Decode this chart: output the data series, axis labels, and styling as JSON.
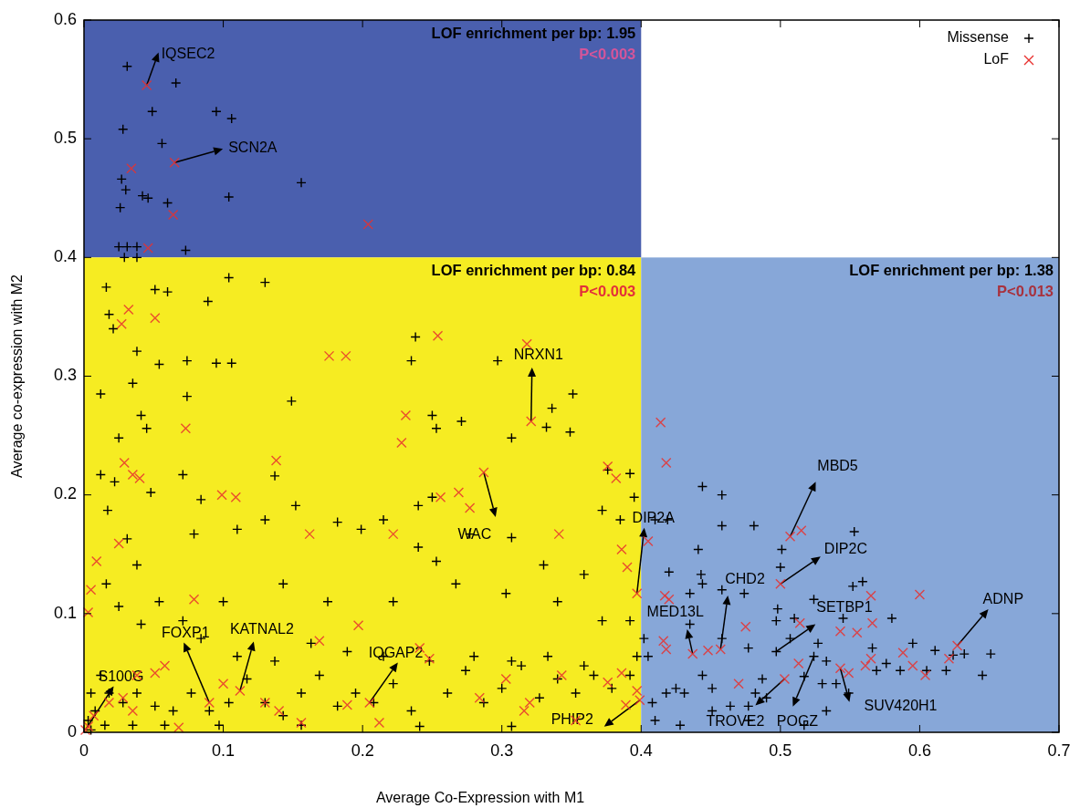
{
  "chart_data": {
    "type": "scatter",
    "xlabel": "Average Co-Expression with M1",
    "ylabel": "Average co-expression with M2",
    "xlim": [
      0,
      0.7
    ],
    "ylim": [
      0,
      0.6
    ],
    "xticks": [
      0,
      0.1,
      0.2,
      0.3,
      0.4,
      0.5,
      0.6,
      0.7
    ],
    "yticks": [
      0,
      0.1,
      0.2,
      0.3,
      0.4,
      0.5,
      0.6
    ],
    "grid": false,
    "legend": "top right",
    "bands": [
      {
        "axis": "y",
        "from": 0.4,
        "to": 0.6,
        "color": "#4a5fae",
        "label": "LOF enrichment per bp: 1.95"
      },
      {
        "axis": "x",
        "from": 0,
        "to": 0.4,
        "color": "#f6ec22",
        "label": "LOF enrichment per bp: 0.84"
      },
      {
        "axis": "x",
        "from": 0.4,
        "to": 0.7,
        "color": "#87a7d8",
        "label": "LOF enrichment per bp: 1.38"
      }
    ],
    "series": [
      {
        "name": "Missense",
        "color": "#000000",
        "marker": "plus",
        "x": [
          0.031,
          0.066,
          0.049,
          0.095,
          0.106,
          0.028,
          0.056,
          0.027,
          0.03,
          0.042,
          0.046,
          0.06,
          0.026,
          0.104,
          0.156,
          0.025,
          0.031,
          0.038,
          0.073,
          0.029,
          0.038,
          0.016,
          0.051,
          0.06,
          0.089,
          0.104,
          0.13,
          0.238,
          0.297,
          0.018,
          0.021,
          0.038,
          0.054,
          0.074,
          0.095,
          0.106,
          0.035,
          0.074,
          0.149,
          0.235,
          0.25,
          0.253,
          0.271,
          0.336,
          0.351,
          0.332,
          0.349,
          0.307,
          0.012,
          0.025,
          0.041,
          0.045,
          0.022,
          0.048,
          0.071,
          0.084,
          0.079,
          0.11,
          0.13,
          0.137,
          0.152,
          0.182,
          0.199,
          0.215,
          0.24,
          0.25,
          0.24,
          0.253,
          0.277,
          0.307,
          0.33,
          0.359,
          0.372,
          0.376,
          0.392,
          0.395,
          0.385,
          0.012,
          0.017,
          0.031,
          0.016,
          0.038,
          0.054,
          0.025,
          0.041,
          0.071,
          0.1,
          0.143,
          0.175,
          0.222,
          0.267,
          0.303,
          0.34,
          0.372,
          0.392,
          0.012,
          0.018,
          0.028,
          0.038,
          0.051,
          0.064,
          0.077,
          0.09,
          0.104,
          0.117,
          0.13,
          0.143,
          0.156,
          0.169,
          0.182,
          0.195,
          0.208,
          0.222,
          0.235,
          0.248,
          0.261,
          0.274,
          0.287,
          0.3,
          0.314,
          0.327,
          0.34,
          0.353,
          0.366,
          0.379,
          0.392,
          0.397,
          0.084,
          0.11,
          0.137,
          0.163,
          0.189,
          0.215,
          0.28,
          0.307,
          0.333,
          0.359,
          0.005,
          0.008,
          0.015,
          0.035,
          0.058,
          0.097,
          0.156,
          0.241,
          0.307,
          0.003,
          0.005,
          0.444,
          0.458,
          0.41,
          0.419,
          0.458,
          0.481,
          0.441,
          0.42,
          0.443,
          0.444,
          0.435,
          0.458,
          0.474,
          0.501,
          0.5,
          0.553,
          0.552,
          0.559,
          0.524,
          0.498,
          0.497,
          0.51,
          0.545,
          0.58,
          0.595,
          0.611,
          0.624,
          0.632,
          0.566,
          0.569,
          0.576,
          0.586,
          0.619,
          0.645,
          0.651,
          0.605,
          0.53,
          0.517,
          0.549,
          0.49,
          0.487,
          0.451,
          0.444,
          0.431,
          0.425,
          0.418,
          0.408,
          0.41,
          0.428,
          0.451,
          0.464,
          0.477,
          0.482,
          0.524,
          0.533,
          0.54,
          0.517,
          0.533,
          0.477,
          0.405,
          0.402,
          0.435,
          0.458,
          0.477,
          0.497,
          0.507,
          0.527
        ],
        "values": [
          0.561,
          0.547,
          0.523,
          0.523,
          0.517,
          0.508,
          0.496,
          0.466,
          0.457,
          0.452,
          0.45,
          0.446,
          0.442,
          0.451,
          0.463,
          0.409,
          0.409,
          0.409,
          0.406,
          0.4,
          0.4,
          0.375,
          0.373,
          0.371,
          0.363,
          0.383,
          0.379,
          0.333,
          0.313,
          0.352,
          0.34,
          0.321,
          0.31,
          0.313,
          0.311,
          0.311,
          0.294,
          0.283,
          0.279,
          0.313,
          0.267,
          0.256,
          0.262,
          0.273,
          0.285,
          0.257,
          0.253,
          0.248,
          0.285,
          0.248,
          0.267,
          0.256,
          0.211,
          0.202,
          0.217,
          0.196,
          0.167,
          0.171,
          0.179,
          0.216,
          0.191,
          0.177,
          0.171,
          0.179,
          0.191,
          0.198,
          0.156,
          0.144,
          0.167,
          0.164,
          0.141,
          0.133,
          0.187,
          0.221,
          0.218,
          0.198,
          0.179,
          0.217,
          0.187,
          0.163,
          0.125,
          0.141,
          0.11,
          0.106,
          0.091,
          0.094,
          0.11,
          0.125,
          0.11,
          0.11,
          0.125,
          0.117,
          0.11,
          0.094,
          0.094,
          0.048,
          0.033,
          0.025,
          0.033,
          0.022,
          0.018,
          0.033,
          0.018,
          0.025,
          0.045,
          0.025,
          0.014,
          0.033,
          0.048,
          0.022,
          0.033,
          0.025,
          0.041,
          0.018,
          0.06,
          0.033,
          0.052,
          0.025,
          0.037,
          0.056,
          0.029,
          0.045,
          0.033,
          0.048,
          0.037,
          0.048,
          0.064,
          0.079,
          0.064,
          0.06,
          0.075,
          0.068,
          0.064,
          0.064,
          0.06,
          0.064,
          0.056,
          0.033,
          0.018,
          0.006,
          0.006,
          0.006,
          0.006,
          0.006,
          0.005,
          0.005,
          0.01,
          0.002,
          0.207,
          0.2,
          0.179,
          0.179,
          0.174,
          0.174,
          0.154,
          0.135,
          0.133,
          0.125,
          0.117,
          0.12,
          0.117,
          0.154,
          0.139,
          0.169,
          0.123,
          0.127,
          0.112,
          0.104,
          0.094,
          0.096,
          0.096,
          0.096,
          0.075,
          0.069,
          0.065,
          0.066,
          0.071,
          0.052,
          0.058,
          0.052,
          0.052,
          0.048,
          0.066,
          0.052,
          0.041,
          0.047,
          0.033,
          0.029,
          0.045,
          0.037,
          0.048,
          0.033,
          0.037,
          0.033,
          0.025,
          0.01,
          0.006,
          0.018,
          0.022,
          0.022,
          0.033,
          0.064,
          0.06,
          0.041,
          0.006,
          0.018,
          0.01,
          0.064,
          0.079,
          0.091,
          0.079,
          0.071,
          0.068,
          0.079,
          0.075
        ]
      },
      {
        "name": "LoF",
        "color": "#e8312f",
        "marker": "cross",
        "x": [
          0.045,
          0.034,
          0.065,
          0.064,
          0.204,
          0.046,
          0.032,
          0.051,
          0.027,
          0.176,
          0.188,
          0.254,
          0.318,
          0.073,
          0.035,
          0.04,
          0.029,
          0.099,
          0.138,
          0.231,
          0.228,
          0.256,
          0.269,
          0.277,
          0.287,
          0.321,
          0.341,
          0.376,
          0.382,
          0.397,
          0.39,
          0.386,
          0.109,
          0.162,
          0.222,
          0.009,
          0.005,
          0.025,
          0.003,
          0.079,
          0.169,
          0.197,
          0.248,
          0.001,
          0.003,
          0.007,
          0.018,
          0.028,
          0.035,
          0.038,
          0.051,
          0.058,
          0.09,
          0.1,
          0.112,
          0.13,
          0.14,
          0.156,
          0.068,
          0.189,
          0.212,
          0.205,
          0.241,
          0.284,
          0.303,
          0.316,
          0.32,
          0.343,
          0.353,
          0.376,
          0.386,
          0.389,
          0.397,
          0.399,
          0.414,
          0.418,
          0.405,
          0.417,
          0.42,
          0.416,
          0.418,
          0.437,
          0.448,
          0.457,
          0.475,
          0.514,
          0.566,
          0.513,
          0.5,
          0.507,
          0.515,
          0.565,
          0.6,
          0.543,
          0.555,
          0.565,
          0.621,
          0.627,
          0.561,
          0.549,
          0.604,
          0.588,
          0.543,
          0.47,
          0.503,
          0.595
        ],
        "values": [
          0.545,
          0.475,
          0.48,
          0.436,
          0.428,
          0.408,
          0.356,
          0.349,
          0.344,
          0.317,
          0.317,
          0.334,
          0.327,
          0.256,
          0.217,
          0.214,
          0.227,
          0.2,
          0.229,
          0.267,
          0.244,
          0.198,
          0.202,
          0.189,
          0.219,
          0.262,
          0.167,
          0.224,
          0.214,
          0.117,
          0.139,
          0.154,
          0.198,
          0.167,
          0.167,
          0.144,
          0.12,
          0.159,
          0.101,
          0.112,
          0.077,
          0.09,
          0.062,
          0.002,
          0.005,
          0.014,
          0.025,
          0.029,
          0.018,
          0.048,
          0.05,
          0.056,
          0.025,
          0.041,
          0.035,
          0.025,
          0.018,
          0.008,
          0.004,
          0.023,
          0.008,
          0.025,
          0.071,
          0.029,
          0.045,
          0.018,
          0.025,
          0.048,
          0.01,
          0.042,
          0.05,
          0.023,
          0.035,
          0.027,
          0.261,
          0.227,
          0.161,
          0.115,
          0.112,
          0.077,
          0.07,
          0.066,
          0.069,
          0.07,
          0.089,
          0.092,
          0.092,
          0.058,
          0.125,
          0.165,
          0.17,
          0.115,
          0.116,
          0.085,
          0.084,
          0.062,
          0.062,
          0.073,
          0.056,
          0.05,
          0.048,
          0.067,
          0.054,
          0.041,
          0.045,
          0.056
        ]
      }
    ],
    "annotations": [
      {
        "text": "IQSEC2",
        "x": 0.045,
        "y": 0.545
      },
      {
        "text": "SCN2A",
        "x": 0.065,
        "y": 0.48
      },
      {
        "text": "NRXN1",
        "x": 0.321,
        "y": 0.262
      },
      {
        "text": "WAC",
        "x": 0.287,
        "y": 0.219
      },
      {
        "text": "DIP2A",
        "x": 0.397,
        "y": 0.117
      },
      {
        "text": "MBD5",
        "x": 0.507,
        "y": 0.165
      },
      {
        "text": "DIP2C",
        "x": 0.5,
        "y": 0.125
      },
      {
        "text": "ADNP",
        "x": 0.627,
        "y": 0.073
      },
      {
        "text": "CHD2",
        "x": 0.457,
        "y": 0.07
      },
      {
        "text": "MED13L",
        "x": 0.437,
        "y": 0.066
      },
      {
        "text": "SETBP1",
        "x": 0.497,
        "y": 0.068
      },
      {
        "text": "TROVE2",
        "x": 0.503,
        "y": 0.045
      },
      {
        "text": "POGZ",
        "x": 0.524,
        "y": 0.064
      },
      {
        "text": "SUV420H1",
        "x": 0.543,
        "y": 0.054
      },
      {
        "text": "PHIP2",
        "x": 0.399,
        "y": 0.027
      },
      {
        "text": "IQGAP2",
        "x": 0.205,
        "y": 0.025
      },
      {
        "text": "KATNAL2",
        "x": 0.112,
        "y": 0.035
      },
      {
        "text": "FOXP1",
        "x": 0.09,
        "y": 0.025
      },
      {
        "text": "S100G",
        "x": 0.001,
        "y": 0.002
      },
      "P<0.003",
      "P<0.003",
      "P<0.013"
    ]
  }
}
